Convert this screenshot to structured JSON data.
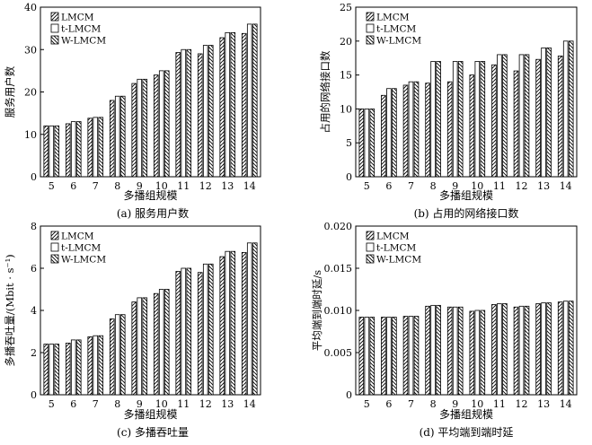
{
  "chart_data": [
    {
      "type": "bar",
      "caption": "(a) 服务用户数",
      "ylabel": "服务用户数",
      "xlabel": "多播组规模",
      "categories": [
        "5",
        "6",
        "7",
        "8",
        "9",
        "10",
        "11",
        "12",
        "13",
        "14"
      ],
      "ylim": [
        0,
        40
      ],
      "yticks": [
        "0",
        "10",
        "20",
        "30",
        "40"
      ],
      "series": [
        {
          "name": "LMCM",
          "values": [
            12,
            12.5,
            13.8,
            18,
            22,
            24,
            29.3,
            29,
            32.8,
            33.8
          ]
        },
        {
          "name": "t-LMCM",
          "values": [
            12,
            13,
            14,
            19,
            23,
            25,
            30,
            31,
            34,
            36
          ]
        },
        {
          "name": "W-LMCM",
          "values": [
            12,
            13,
            14,
            19,
            23,
            25,
            30,
            31,
            34,
            36
          ]
        }
      ]
    },
    {
      "type": "bar",
      "caption": "(b) 占用的网络接口数",
      "ylabel": "占用的网络接口数",
      "xlabel": "多播组规模",
      "categories": [
        "5",
        "6",
        "7",
        "8",
        "9",
        "10",
        "11",
        "12",
        "13",
        "14"
      ],
      "ylim": [
        0,
        25
      ],
      "yticks": [
        "0",
        "5",
        "10",
        "15",
        "20",
        "25"
      ],
      "series": [
        {
          "name": "LMCM",
          "values": [
            10,
            12,
            13.5,
            13.8,
            14,
            15,
            16.5,
            15.6,
            17.3,
            17.8
          ]
        },
        {
          "name": "t-LMCM",
          "values": [
            10,
            13,
            14,
            17,
            17,
            17,
            18,
            18,
            19,
            20
          ]
        },
        {
          "name": "W-LMCM",
          "values": [
            10,
            13,
            14,
            17,
            17,
            17,
            18,
            18,
            19,
            20
          ]
        }
      ]
    },
    {
      "type": "bar",
      "caption": "(c) 多播吞吐量",
      "ylabel": "多播吞吐量/(Mbit · s⁻¹)",
      "xlabel": "多播组规模",
      "categories": [
        "5",
        "6",
        "7",
        "8",
        "9",
        "10",
        "11",
        "12",
        "13",
        "14"
      ],
      "ylim": [
        0,
        8
      ],
      "yticks": [
        "0",
        "2",
        "4",
        "6",
        "8"
      ],
      "series": [
        {
          "name": "LMCM",
          "values": [
            2.4,
            2.45,
            2.75,
            3.6,
            4.4,
            4.8,
            5.85,
            5.8,
            6.55,
            6.75
          ]
        },
        {
          "name": "t-LMCM",
          "values": [
            2.4,
            2.6,
            2.8,
            3.8,
            4.6,
            5.0,
            6.0,
            6.2,
            6.8,
            7.2
          ]
        },
        {
          "name": "W-LMCM",
          "values": [
            2.4,
            2.6,
            2.8,
            3.8,
            4.6,
            5.0,
            6.0,
            6.2,
            6.8,
            7.2
          ]
        }
      ]
    },
    {
      "type": "bar",
      "caption": "(d) 平均端到端时延",
      "ylabel": "平均端到端时延/s",
      "xlabel": "多播组规模",
      "categories": [
        "5",
        "6",
        "7",
        "8",
        "9",
        "10",
        "11",
        "12",
        "13",
        "14"
      ],
      "ylim": [
        0,
        0.02
      ],
      "yticks": [
        "0",
        "0.005",
        "0.010",
        "0.015",
        "0.020"
      ],
      "series": [
        {
          "name": "LMCM",
          "values": [
            0.0092,
            0.0092,
            0.0093,
            0.0105,
            0.0104,
            0.0099,
            0.0107,
            0.0104,
            0.0108,
            0.011
          ]
        },
        {
          "name": "t-LMCM",
          "values": [
            0.0092,
            0.0092,
            0.0093,
            0.0106,
            0.0104,
            0.01,
            0.0108,
            0.0105,
            0.0109,
            0.0111
          ]
        },
        {
          "name": "W-LMCM",
          "values": [
            0.0092,
            0.0092,
            0.0093,
            0.0106,
            0.0104,
            0.01,
            0.0108,
            0.0105,
            0.0109,
            0.0111
          ]
        }
      ]
    }
  ]
}
